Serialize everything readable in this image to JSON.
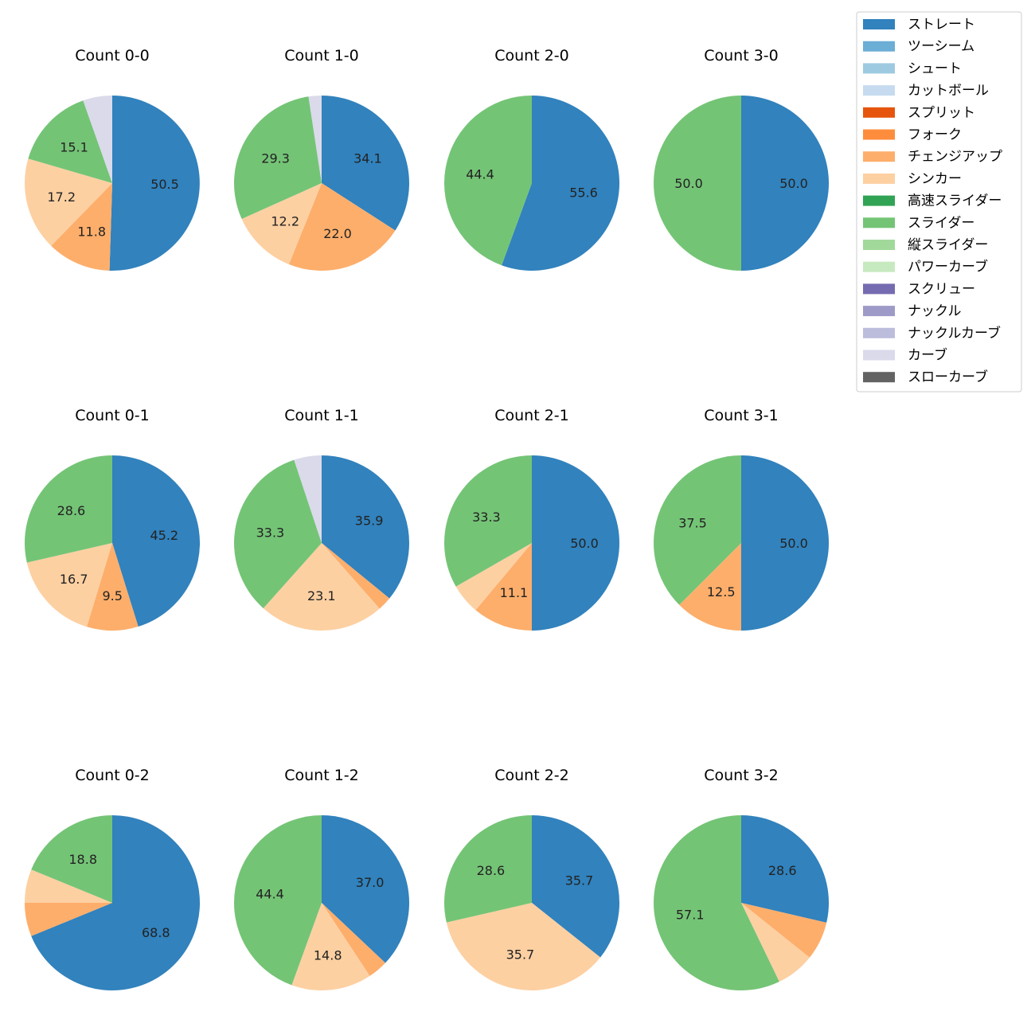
{
  "chart_data": {
    "type": "pie",
    "legend_placement": "top-right",
    "legend": [
      {
        "name": "ストレート",
        "color": "#3182bd"
      },
      {
        "name": "ツーシーム",
        "color": "#6baed6"
      },
      {
        "name": "シュート",
        "color": "#9ecae1"
      },
      {
        "name": "カットボール",
        "color": "#c6dbef"
      },
      {
        "name": "スプリット",
        "color": "#e6550d"
      },
      {
        "name": "フォーク",
        "color": "#fd8d3c"
      },
      {
        "name": "チェンジアップ",
        "color": "#fdae6b"
      },
      {
        "name": "シンカー",
        "color": "#fdd0a2"
      },
      {
        "name": "高速スライダー",
        "color": "#31a354"
      },
      {
        "name": "スライダー",
        "color": "#74c476"
      },
      {
        "name": "縦スライダー",
        "color": "#a1d99b"
      },
      {
        "name": "パワーカーブ",
        "color": "#c7e9c0"
      },
      {
        "name": "スクリュー",
        "color": "#756bb1"
      },
      {
        "name": "ナックル",
        "color": "#9e9ac8"
      },
      {
        "name": "ナックルカーブ",
        "color": "#bcbddc"
      },
      {
        "name": "カーブ",
        "color": "#dadaeb"
      },
      {
        "name": "スローカーブ",
        "color": "#636363"
      }
    ],
    "pies": [
      {
        "title": "Count 0-0",
        "slices": [
          {
            "pitch": "ストレート",
            "value": 50.5,
            "label": "50.5"
          },
          {
            "pitch": "チェンジアップ",
            "value": 11.8,
            "label": "11.8"
          },
          {
            "pitch": "シンカー",
            "value": 17.2,
            "label": "17.2"
          },
          {
            "pitch": "スライダー",
            "value": 15.1,
            "label": "15.1"
          },
          {
            "pitch": "カーブ",
            "value": 5.4,
            "label": ""
          }
        ]
      },
      {
        "title": "Count 1-0",
        "slices": [
          {
            "pitch": "ストレート",
            "value": 34.1,
            "label": "34.1"
          },
          {
            "pitch": "チェンジアップ",
            "value": 22.0,
            "label": "22.0"
          },
          {
            "pitch": "シンカー",
            "value": 12.2,
            "label": "12.2"
          },
          {
            "pitch": "スライダー",
            "value": 29.3,
            "label": "29.3"
          },
          {
            "pitch": "カーブ",
            "value": 2.4,
            "label": ""
          }
        ]
      },
      {
        "title": "Count 2-0",
        "slices": [
          {
            "pitch": "ストレート",
            "value": 55.6,
            "label": "55.6"
          },
          {
            "pitch": "スライダー",
            "value": 44.4,
            "label": "44.4"
          }
        ]
      },
      {
        "title": "Count 3-0",
        "slices": [
          {
            "pitch": "ストレート",
            "value": 50.0,
            "label": "50.0"
          },
          {
            "pitch": "スライダー",
            "value": 50.0,
            "label": "50.0"
          }
        ]
      },
      {
        "title": "Count 0-1",
        "slices": [
          {
            "pitch": "ストレート",
            "value": 45.2,
            "label": "45.2"
          },
          {
            "pitch": "チェンジアップ",
            "value": 9.5,
            "label": "9.5"
          },
          {
            "pitch": "シンカー",
            "value": 16.7,
            "label": "16.7"
          },
          {
            "pitch": "スライダー",
            "value": 28.6,
            "label": "28.6"
          }
        ]
      },
      {
        "title": "Count 1-1",
        "slices": [
          {
            "pitch": "ストレート",
            "value": 35.9,
            "label": "35.9"
          },
          {
            "pitch": "チェンジアップ",
            "value": 2.6,
            "label": ""
          },
          {
            "pitch": "シンカー",
            "value": 23.1,
            "label": "23.1"
          },
          {
            "pitch": "スライダー",
            "value": 33.3,
            "label": "33.3"
          },
          {
            "pitch": "カーブ",
            "value": 5.1,
            "label": ""
          }
        ]
      },
      {
        "title": "Count 2-1",
        "slices": [
          {
            "pitch": "ストレート",
            "value": 50.0,
            "label": "50.0"
          },
          {
            "pitch": "チェンジアップ",
            "value": 11.1,
            "label": "11.1"
          },
          {
            "pitch": "シンカー",
            "value": 5.6,
            "label": ""
          },
          {
            "pitch": "スライダー",
            "value": 33.3,
            "label": "33.3"
          }
        ]
      },
      {
        "title": "Count 3-1",
        "slices": [
          {
            "pitch": "ストレート",
            "value": 50.0,
            "label": "50.0"
          },
          {
            "pitch": "チェンジアップ",
            "value": 12.5,
            "label": "12.5"
          },
          {
            "pitch": "スライダー",
            "value": 37.5,
            "label": "37.5"
          }
        ]
      },
      {
        "title": "Count 0-2",
        "slices": [
          {
            "pitch": "ストレート",
            "value": 68.8,
            "label": "68.8"
          },
          {
            "pitch": "チェンジアップ",
            "value": 6.2,
            "label": ""
          },
          {
            "pitch": "シンカー",
            "value": 6.2,
            "label": ""
          },
          {
            "pitch": "スライダー",
            "value": 18.8,
            "label": "18.8"
          }
        ]
      },
      {
        "title": "Count 1-2",
        "slices": [
          {
            "pitch": "ストレート",
            "value": 37.0,
            "label": "37.0"
          },
          {
            "pitch": "チェンジアップ",
            "value": 3.7,
            "label": ""
          },
          {
            "pitch": "シンカー",
            "value": 14.8,
            "label": "14.8"
          },
          {
            "pitch": "スライダー",
            "value": 44.4,
            "label": "44.4"
          }
        ]
      },
      {
        "title": "Count 2-2",
        "slices": [
          {
            "pitch": "ストレート",
            "value": 35.7,
            "label": "35.7"
          },
          {
            "pitch": "シンカー",
            "value": 35.7,
            "label": "35.7"
          },
          {
            "pitch": "スライダー",
            "value": 28.6,
            "label": "28.6"
          }
        ]
      },
      {
        "title": "Count 3-2",
        "slices": [
          {
            "pitch": "ストレート",
            "value": 28.6,
            "label": "28.6"
          },
          {
            "pitch": "チェンジアップ",
            "value": 7.1,
            "label": ""
          },
          {
            "pitch": "シンカー",
            "value": 7.1,
            "label": ""
          },
          {
            "pitch": "スライダー",
            "value": 57.1,
            "label": "57.1"
          }
        ]
      }
    ]
  }
}
